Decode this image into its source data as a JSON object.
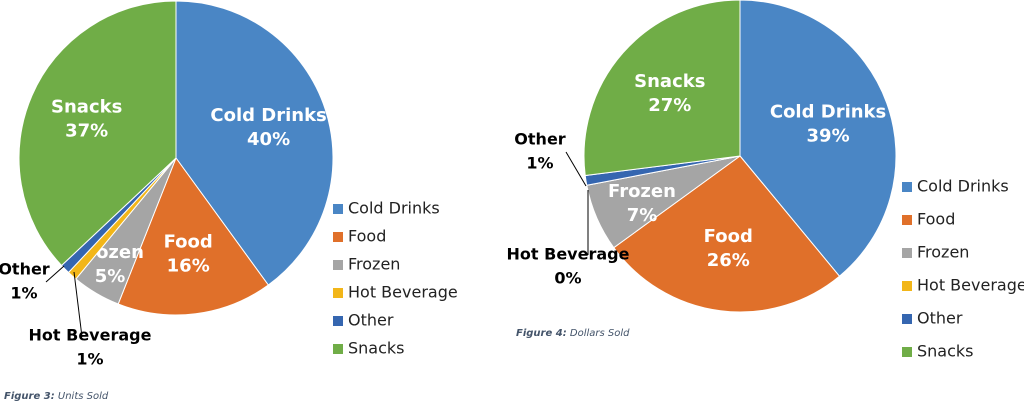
{
  "chart_data": [
    {
      "type": "pie",
      "figure_label": "Figure 3:",
      "title": "Units Sold",
      "categories": [
        "Cold Drinks",
        "Food",
        "Frozen",
        "Hot Beverage",
        "Other",
        "Snacks"
      ],
      "values": [
        40,
        16,
        5,
        1,
        1,
        37
      ],
      "value_labels": [
        "40%",
        "16%",
        "5%",
        "1%",
        "1%",
        "37%"
      ],
      "colors": [
        "#4a86c5",
        "#e0702a",
        "#a5a5a5",
        "#f2b619",
        "#3566b0",
        "#70ad47"
      ],
      "legend": "right"
    },
    {
      "type": "pie",
      "figure_label": "Figure 4:",
      "title": "Dollars Sold",
      "categories": [
        "Cold Drinks",
        "Food",
        "Frozen",
        "Hot Beverage",
        "Other",
        "Snacks"
      ],
      "values": [
        39,
        26,
        7,
        0,
        1,
        27
      ],
      "value_labels": [
        "39%",
        "26%",
        "7%",
        "0%",
        "1%",
        "27%"
      ],
      "colors": [
        "#4a86c5",
        "#e0702a",
        "#a5a5a5",
        "#f2b619",
        "#3566b0",
        "#70ad47"
      ],
      "legend": "right"
    }
  ]
}
